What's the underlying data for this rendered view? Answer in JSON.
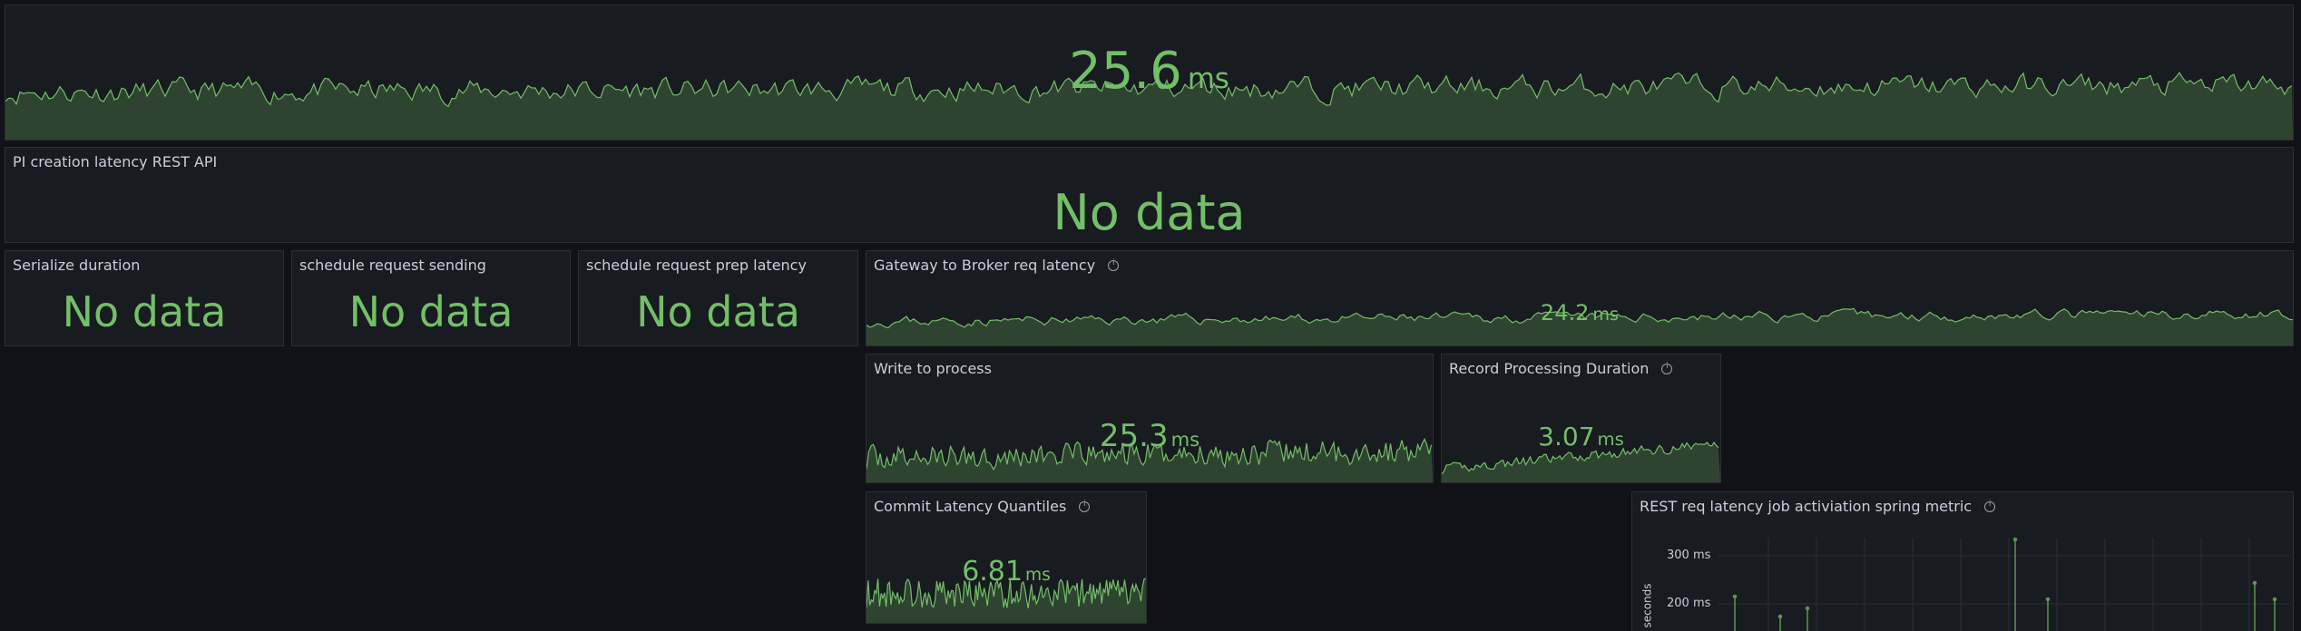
{
  "panels": {
    "top_latency": {
      "title": "",
      "value": "25.6",
      "unit": "ms"
    },
    "pi_creation": {
      "title": "PI creation latency REST API",
      "empty": "No data"
    },
    "serialize": {
      "title": "Serialize duration",
      "empty": "No data"
    },
    "schedule_sending": {
      "title": "schedule request sending",
      "empty": "No data"
    },
    "schedule_prep": {
      "title": "schedule request prep latency",
      "empty": "No data"
    },
    "gateway_broker": {
      "title": "Gateway to Broker req latency",
      "value": "24.2",
      "unit": "ms"
    },
    "write_process": {
      "title": "Write to process",
      "value": "25.3",
      "unit": "ms"
    },
    "record_processing": {
      "title": "Record Processing Duration",
      "value": "3.07",
      "unit": "ms"
    },
    "commit_latency": {
      "title": "Commit Latency Quantiles",
      "value": "6.81",
      "unit": "ms"
    },
    "rest_req": {
      "title": "REST req latency job activiation spring metric",
      "y_axis_label": "seconds",
      "y_ticks": [
        "300 ms",
        "200 ms"
      ]
    }
  },
  "colors": {
    "background": "#111217",
    "panel": "#181b1f",
    "border": "#2c2f35",
    "stat_green": "#73bf69",
    "spark_fill": "#2f4430",
    "title_text": "#ccccdc"
  },
  "icons": {
    "info": "info-circle-icon"
  }
}
